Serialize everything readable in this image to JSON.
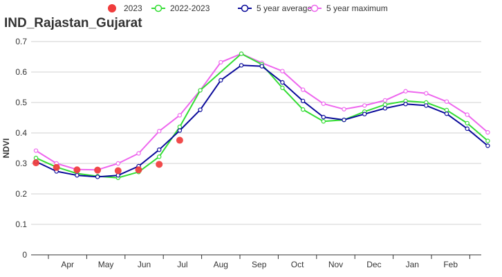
{
  "chart_data": {
    "type": "line",
    "title": "IND_Rajastan_Gujarat",
    "ylabel": "NDVI",
    "xlabel": "",
    "ylim": [
      0,
      0.7
    ],
    "yticks": [
      "0",
      "0.1",
      "0.2",
      "0.3",
      "0.4",
      "0.5",
      "0.6",
      "0.7"
    ],
    "month_labels": [
      "Apr",
      "May",
      "Jun",
      "Jul",
      "Aug",
      "Sep",
      "Oct",
      "Nov",
      "Dec",
      "Jan",
      "Feb"
    ],
    "grid": true,
    "legend_position": "top",
    "series": [
      {
        "name": "2023",
        "style": "dots",
        "color": "#f03c3c",
        "values": [
          0.302,
          0.287,
          0.279,
          0.278,
          0.276,
          0.279,
          0.297,
          0.376
        ]
      },
      {
        "name": "2022-2023",
        "style": "line",
        "color": "#33dd33",
        "values": [
          0.318,
          0.288,
          0.267,
          0.258,
          0.253,
          0.272,
          0.322,
          0.42,
          0.54,
          null,
          0.66,
          0.625,
          0.548,
          0.477,
          0.438,
          0.443,
          0.47,
          0.493,
          0.505,
          0.5,
          0.475,
          0.432,
          0.374
        ]
      },
      {
        "name": "5 year average",
        "style": "line",
        "color": "#0a0a9a",
        "values": [
          0.306,
          0.274,
          0.261,
          0.256,
          0.261,
          0.291,
          0.345,
          0.408,
          0.476,
          0.573,
          0.622,
          0.619,
          0.566,
          0.505,
          0.452,
          0.443,
          0.462,
          0.481,
          0.495,
          0.49,
          0.463,
          0.414,
          0.358
        ]
      },
      {
        "name": "5 year maximum",
        "style": "line",
        "color": "#ee66ee",
        "values": [
          0.342,
          0.3,
          0.28,
          0.279,
          0.3,
          0.333,
          0.406,
          0.458,
          0.54,
          0.632,
          0.66,
          0.63,
          0.603,
          0.542,
          0.496,
          0.478,
          0.49,
          0.507,
          0.537,
          0.53,
          0.503,
          0.46,
          0.402
        ]
      }
    ]
  }
}
